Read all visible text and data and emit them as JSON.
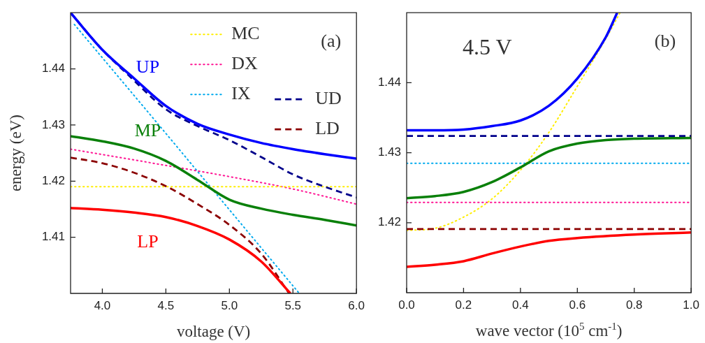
{
  "chart_data": [
    {
      "type": "line",
      "xlabel": "voltage (V)",
      "ylabel": "energy (eV)",
      "xlim": [
        3.75,
        6.0
      ],
      "ylim": [
        1.4,
        1.45
      ],
      "xticks": [
        {
          "value": 4,
          "label": "4.0"
        },
        {
          "value": 4.5,
          "label": "4.5"
        },
        {
          "value": 5,
          "label": "5.0"
        },
        {
          "value": 5.5,
          "label": "5.5"
        },
        {
          "value": 6,
          "label": "6.0"
        }
      ],
      "yticks": [
        1.41,
        1.42,
        1.43,
        1.44
      ],
      "grid": false,
      "legend": "top right",
      "marker": "none",
      "annotations": [
        "(a)"
      ],
      "series": [
        {
          "name": "UP",
          "color": "#0000ff",
          "line_style": "solid",
          "x": [
            3.75,
            4.0,
            4.25,
            4.5,
            4.75,
            5.0,
            5.25,
            5.5,
            5.75,
            6.0
          ],
          "values": [
            1.45,
            1.4434,
            1.4383,
            1.4334,
            1.4302,
            1.4283,
            1.4268,
            1.4257,
            1.4248,
            1.424
          ]
        },
        {
          "name": "MP",
          "color": "#0a800a",
          "line_style": "solid",
          "x": [
            3.75,
            4.0,
            4.25,
            4.5,
            4.75,
            5.0,
            5.25,
            5.5,
            5.75,
            6.0
          ],
          "values": [
            1.428,
            1.4271,
            1.4258,
            1.4236,
            1.4202,
            1.4167,
            1.4151,
            1.414,
            1.4131,
            1.4121
          ]
        },
        {
          "name": "LP",
          "color": "#ff0000",
          "line_style": "solid",
          "x": [
            3.75,
            4.0,
            4.25,
            4.5,
            4.75,
            5.0,
            5.25,
            5.48
          ],
          "values": [
            1.4152,
            1.4149,
            1.4144,
            1.4136,
            1.412,
            1.4096,
            1.4057,
            1.4
          ]
        },
        {
          "name": "UD",
          "color": "#00008b",
          "line_style": "dashed",
          "x": [
            3.75,
            4.0,
            4.2,
            4.5,
            4.75,
            5.0,
            5.25,
            5.5,
            5.75,
            6.0
          ],
          "values": [
            1.45,
            1.4434,
            1.439,
            1.4328,
            1.4298,
            1.4273,
            1.4243,
            1.4212,
            1.419,
            1.4171
          ]
        },
        {
          "name": "LD",
          "color": "#8b0000",
          "line_style": "dashed",
          "x": [
            3.75,
            4.0,
            4.25,
            4.5,
            4.75,
            5.0,
            5.25,
            5.47
          ],
          "values": [
            1.4242,
            1.4232,
            1.4215,
            1.4191,
            1.4159,
            1.4122,
            1.4071,
            1.4
          ]
        },
        {
          "name": "MC",
          "color": "#ffee00",
          "line_style": "dotted",
          "x": [
            3.75,
            6.0
          ],
          "values": [
            1.419,
            1.419
          ]
        },
        {
          "name": "DX",
          "color": "#ff1493",
          "line_style": "dotted",
          "x": [
            3.75,
            4.5,
            5.0,
            5.5,
            6.0
          ],
          "values": [
            1.4257,
            1.4228,
            1.4208,
            1.4186,
            1.4159
          ]
        },
        {
          "name": "IX",
          "color": "#00aaee",
          "line_style": "dotted",
          "x": [
            3.78,
            4.5,
            5.0,
            5.55
          ],
          "values": [
            1.4479,
            1.4285,
            1.4149,
            1.4
          ]
        }
      ]
    },
    {
      "type": "line",
      "xlabel": "wave vector (10$^{5}$ cm$^{-1}$)",
      "xlim": [
        0,
        1
      ],
      "ylim": [
        1.41,
        1.45
      ],
      "xticks": [
        {
          "value": 0,
          "label": "0.0"
        },
        {
          "value": 0.2,
          "label": "0.2"
        },
        {
          "value": 0.4,
          "label": "0.4"
        },
        {
          "value": 0.6,
          "label": "0.6"
        },
        {
          "value": 0.8,
          "label": "0.8"
        },
        {
          "value": 1,
          "label": "1.0"
        }
      ],
      "yticks": [
        1.42,
        1.43,
        1.44
      ],
      "grid": false,
      "marker": "none",
      "annotations": [
        "4.5 V",
        "(b)"
      ],
      "series": [
        {
          "color": "#0000ff",
          "line_style": "solid",
          "x": [
            0,
            0.1,
            0.2,
            0.3,
            0.4,
            0.5,
            0.6,
            0.7,
            0.74
          ],
          "values": [
            1.4332,
            1.4332,
            1.4333,
            1.4338,
            1.4346,
            1.4367,
            1.4406,
            1.4465,
            1.45
          ]
        },
        {
          "color": "#0a800a",
          "line_style": "solid",
          "x": [
            0,
            0.1,
            0.2,
            0.3,
            0.4,
            0.5,
            0.6,
            0.7,
            0.8,
            1.0
          ],
          "values": [
            1.4235,
            1.4238,
            1.4244,
            1.4258,
            1.4279,
            1.4302,
            1.4313,
            1.4318,
            1.432,
            1.4321
          ]
        },
        {
          "color": "#ff0000",
          "line_style": "solid",
          "x": [
            0,
            0.1,
            0.2,
            0.3,
            0.4,
            0.5,
            0.6,
            0.8,
            1.0
          ],
          "values": [
            1.4137,
            1.414,
            1.4145,
            1.4156,
            1.4166,
            1.4174,
            1.4178,
            1.4183,
            1.4186
          ]
        },
        {
          "color": "#00008b",
          "line_style": "dashed",
          "x": [
            0,
            1
          ],
          "values": [
            1.4324,
            1.4324
          ]
        },
        {
          "color": "#8b0000",
          "line_style": "dashed",
          "x": [
            0,
            1
          ],
          "values": [
            1.4191,
            1.4191
          ]
        },
        {
          "color": "#ffee00",
          "line_style": "dotted",
          "x": [
            0,
            0.1,
            0.2,
            0.3,
            0.4,
            0.5,
            0.6,
            0.7,
            0.75
          ],
          "values": [
            1.4189,
            1.4192,
            1.4208,
            1.4234,
            1.4275,
            1.4329,
            1.4395,
            1.4463,
            1.45
          ]
        },
        {
          "color": "#ff1493",
          "line_style": "dotted",
          "x": [
            0,
            1
          ],
          "values": [
            1.4229,
            1.4229
          ]
        },
        {
          "color": "#00aaee",
          "line_style": "dotted",
          "x": [
            0,
            1
          ],
          "values": [
            1.4285,
            1.4285
          ]
        }
      ]
    }
  ]
}
